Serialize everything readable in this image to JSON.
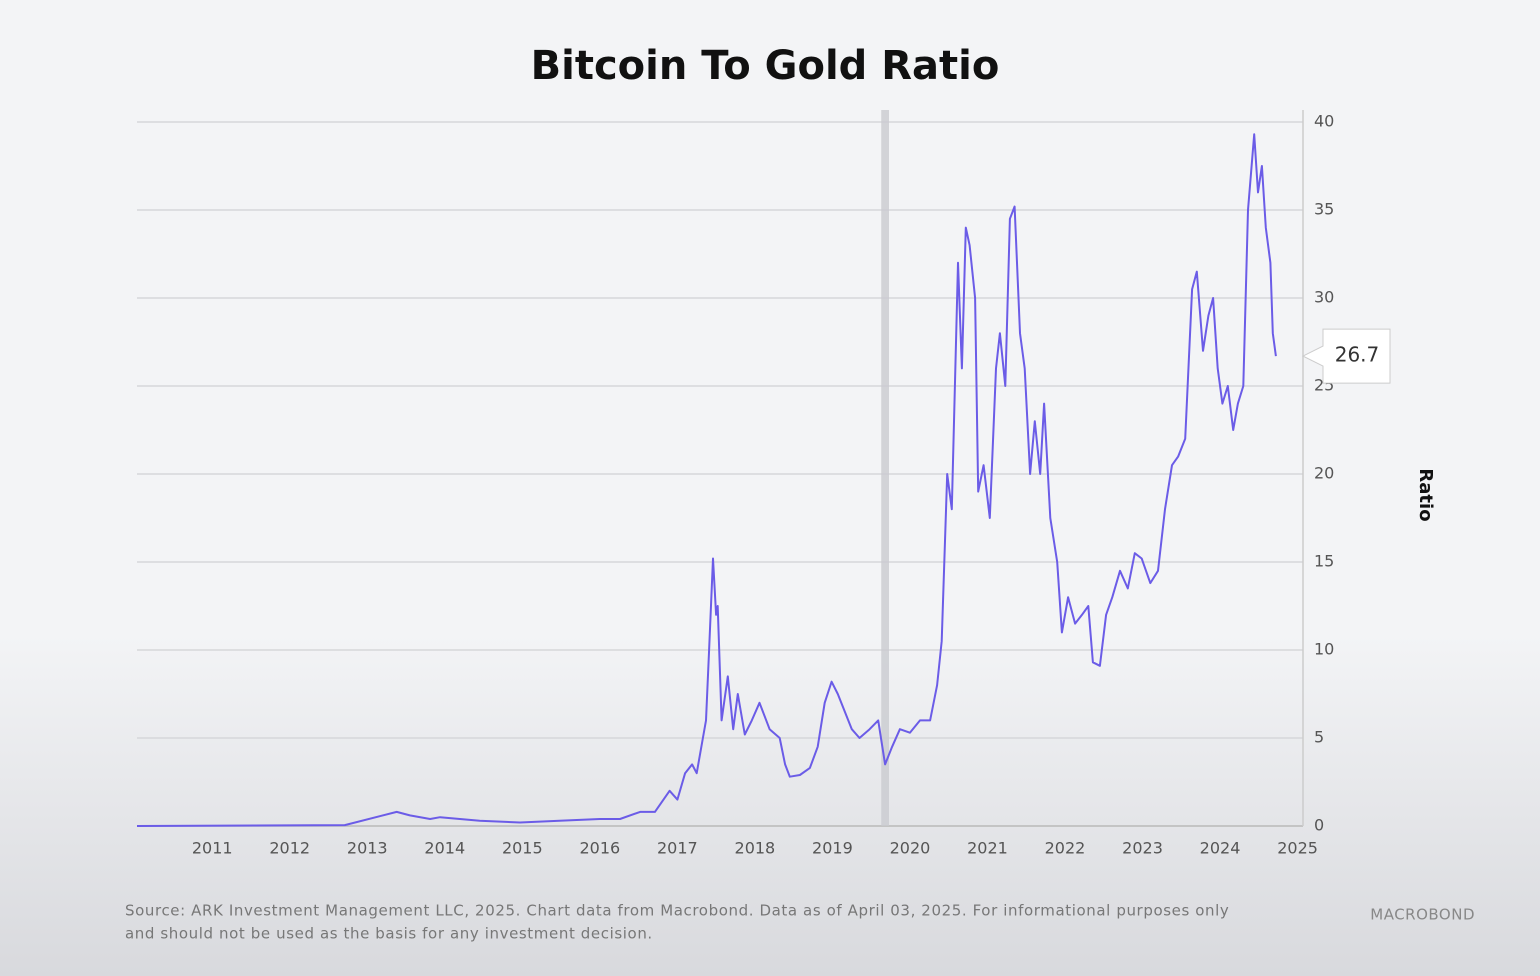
{
  "chart_data": {
    "type": "line",
    "title": "Bitcoin To Gold Ratio",
    "y_axis_label": "Ratio",
    "x": [
      2010.53,
      2013.21,
      2013.88,
      2014.05,
      2014.31,
      2014.44,
      2014.95,
      2015.47,
      2015.98,
      2016.5,
      2016.76,
      2017.02,
      2017.21,
      2017.4,
      2017.5,
      2017.6,
      2017.69,
      2017.75,
      2017.83,
      2017.87,
      2017.91,
      2017.96,
      2018.0,
      2018.02,
      2018.07,
      2018.15,
      2018.22,
      2018.28,
      2018.37,
      2018.46,
      2018.56,
      2018.69,
      2018.82,
      2018.89,
      2018.95,
      2019.08,
      2019.21,
      2019.31,
      2019.4,
      2019.49,
      2019.57,
      2019.66,
      2019.75,
      2019.85,
      2019.98,
      2020.09,
      2020.18,
      2020.27,
      2020.37,
      2020.5,
      2020.63,
      2020.76,
      2020.85,
      2020.91,
      2020.98,
      2021.04,
      2021.12,
      2021.17,
      2021.22,
      2021.27,
      2021.34,
      2021.38,
      2021.45,
      2021.53,
      2021.61,
      2021.66,
      2021.73,
      2021.79,
      2021.85,
      2021.92,
      2021.98,
      2022.05,
      2022.11,
      2022.18,
      2022.23,
      2022.31,
      2022.4,
      2022.46,
      2022.54,
      2022.63,
      2022.72,
      2022.8,
      2022.86,
      2022.95,
      2023.03,
      2023.11,
      2023.21,
      2023.31,
      2023.4,
      2023.49,
      2023.6,
      2023.7,
      2023.79,
      2023.88,
      2023.96,
      2024.05,
      2024.14,
      2024.2,
      2024.28,
      2024.35,
      2024.41,
      2024.47,
      2024.53,
      2024.6,
      2024.67,
      2024.73,
      2024.8,
      2024.86,
      2024.94,
      2024.99,
      2025.04,
      2025.09,
      2025.15,
      2025.18,
      2025.22
    ],
    "values": [
      0.0,
      0.05,
      0.8,
      0.6,
      0.4,
      0.5,
      0.3,
      0.2,
      0.3,
      0.4,
      0.4,
      0.8,
      0.8,
      2.0,
      1.5,
      3.0,
      3.5,
      3.0,
      5.0,
      6.0,
      10.0,
      15.2,
      12.0,
      12.5,
      6.0,
      8.5,
      5.5,
      7.5,
      5.2,
      6.0,
      7.0,
      5.5,
      5.0,
      3.5,
      2.8,
      2.9,
      3.3,
      4.5,
      7.0,
      8.2,
      7.5,
      6.5,
      5.5,
      5.0,
      5.5,
      6.0,
      3.5,
      4.5,
      5.5,
      5.3,
      6.0,
      6.0,
      8.0,
      10.5,
      20.0,
      18.0,
      32.0,
      26.0,
      34.0,
      33.0,
      30.0,
      19.0,
      20.5,
      17.5,
      26.0,
      28.0,
      25.0,
      34.5,
      35.2,
      28.0,
      26.0,
      20.0,
      23.0,
      20.0,
      24.0,
      17.5,
      15.0,
      11.0,
      13.0,
      11.5,
      12.0,
      12.5,
      9.3,
      9.1,
      12.0,
      13.0,
      14.5,
      13.5,
      15.5,
      15.2,
      13.8,
      14.5,
      18.0,
      20.5,
      21.0,
      22.0,
      30.5,
      31.5,
      27.0,
      29.0,
      30.0,
      26.0,
      24.0,
      25.0,
      22.5,
      24.0,
      25.0,
      35.0,
      39.3,
      36.0,
      37.5,
      34.0,
      32.0,
      28.0,
      26.7
    ],
    "color": "#6b5ce7",
    "callout": {
      "value": 26.7,
      "label": "26.7"
    },
    "shaded_periods": [
      [
        2020.13,
        2020.23
      ]
    ],
    "xlim": [
      2010.53,
      2025.57
    ],
    "xticks": [
      {
        "value": 2011.5,
        "label": "2011"
      },
      {
        "value": 2012.5,
        "label": "2012"
      },
      {
        "value": 2013.5,
        "label": "2013"
      },
      {
        "value": 2014.5,
        "label": "2014"
      },
      {
        "value": 2015.5,
        "label": "2015"
      },
      {
        "value": 2016.5,
        "label": "2016"
      },
      {
        "value": 2017.5,
        "label": "2017"
      },
      {
        "value": 2018.5,
        "label": "2018"
      },
      {
        "value": 2019.5,
        "label": "2019"
      },
      {
        "value": 2020.5,
        "label": "2020"
      },
      {
        "value": 2021.5,
        "label": "2021"
      },
      {
        "value": 2022.5,
        "label": "2022"
      },
      {
        "value": 2023.5,
        "label": "2023"
      },
      {
        "value": 2024.5,
        "label": "2024"
      },
      {
        "value": 2025.5,
        "label": "2025"
      }
    ],
    "ylim": [
      0,
      40
    ],
    "yticks": [
      0,
      5,
      10,
      15,
      20,
      25,
      30,
      35,
      40
    ],
    "grid": true,
    "footnote": [
      "Source: ARK Investment Management LLC, 2025. Chart data from Macrobond. Data as of April 03, 2025. For informational purposes only",
      "and should not be used as the basis for any investment decision."
    ],
    "logo": "MACROBOND"
  }
}
